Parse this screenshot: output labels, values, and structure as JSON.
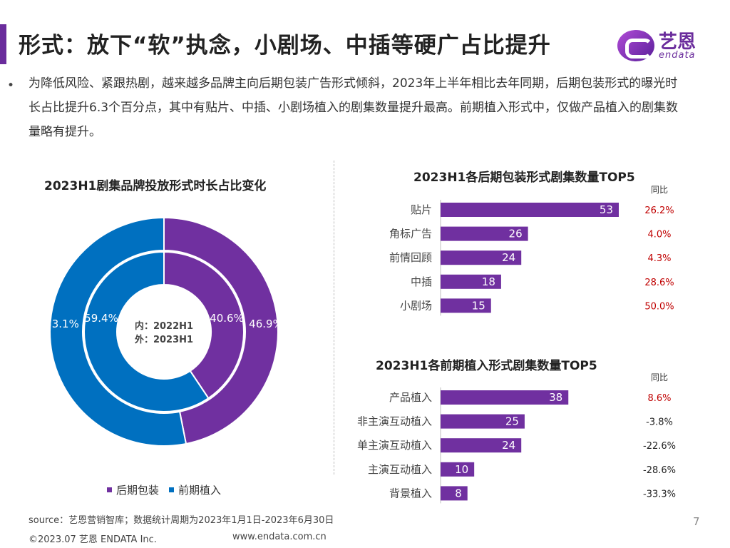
{
  "header": {
    "title": "形式：放下“软”执念，小剧场、中插等硬广占比提升",
    "logo_cn": "艺恩",
    "logo_en": "endata"
  },
  "intro": {
    "bullet": "•",
    "text": "为降低风险、紧跟热剧，越来越多品牌主向后期包装广告形式倾斜，2023年上半年相比去年同期，后期包装形式的曝光时长占比提升6.3个百分点，其中有贴片、中插、小剧场植入的剧集数量提升最高。前期植入形式中，仅做产品植入的剧集数量略有提升。"
  },
  "colors": {
    "accent": "#6a2c9c",
    "purple": "#7030a0",
    "blue": "#0070c0",
    "red": "#c00000"
  },
  "chart_data": [
    {
      "type": "pie",
      "title": "2023H1剧集品牌投放形式时长占比变化",
      "center_label": [
        "内：2022H1",
        "外：2023H1"
      ],
      "legend_position": "bottom",
      "rings": [
        {
          "name": "2022H1",
          "ring": "inner",
          "slices": [
            {
              "label": "后期包装",
              "value": 40.6,
              "display": "40.6%"
            },
            {
              "label": "前期植入",
              "value": 59.4,
              "display": "59.4%"
            }
          ]
        },
        {
          "name": "2023H1",
          "ring": "outer",
          "slices": [
            {
              "label": "后期包装",
              "value": 46.9,
              "display": "46.9%"
            },
            {
              "label": "前期植入",
              "value": 53.1,
              "display": "53.1%"
            }
          ]
        }
      ],
      "legend": [
        {
          "name": "后期包装",
          "color": "#7030a0"
        },
        {
          "name": "前期植入",
          "color": "#0070c0"
        }
      ]
    },
    {
      "type": "bar",
      "orientation": "horizontal",
      "title": "2023H1各后期包装形式剧集数量TOP5",
      "yoy_header": "同比",
      "categories": [
        "贴片",
        "角标广告",
        "前情回顾",
        "中插",
        "小剧场"
      ],
      "values": [
        53,
        26,
        24,
        18,
        15
      ],
      "yoy": [
        "26.2%",
        "4.0%",
        "4.3%",
        "28.6%",
        "50.0%"
      ],
      "yoy_colors": [
        "#c00000",
        "#c00000",
        "#c00000",
        "#c00000",
        "#c00000"
      ]
    },
    {
      "type": "bar",
      "orientation": "horizontal",
      "title": "2023H1各前期植入形式剧集数量TOP5",
      "yoy_header": "同比",
      "categories": [
        "产品植入",
        "非主演互动植入",
        "单主演互动植入",
        "主演互动植入",
        "背景植入"
      ],
      "values": [
        38,
        25,
        24,
        10,
        8
      ],
      "yoy": [
        "8.6%",
        "-3.8%",
        "-22.6%",
        "-28.6%",
        "-33.3%"
      ],
      "yoy_colors": [
        "#c00000",
        "#222222",
        "#222222",
        "#222222",
        "#222222"
      ]
    }
  ],
  "footer": {
    "source": "source：艺恩营销智库；数据统计周期为2023年1月1日-2023年6月30日",
    "copyright": "©2023.07 艺恩 ENDATA Inc.",
    "website": "www.endata.com.cn",
    "page": "7"
  }
}
